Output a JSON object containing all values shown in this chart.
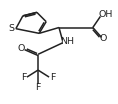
{
  "bg_color": "#ffffff",
  "line_color": "#222222",
  "line_width": 1.1,
  "font_size": 6.8,
  "figsize": [
    1.18,
    1.04
  ],
  "dpi": 100,
  "xlim": [
    0,
    10
  ],
  "ylim": [
    0,
    8.8
  ]
}
